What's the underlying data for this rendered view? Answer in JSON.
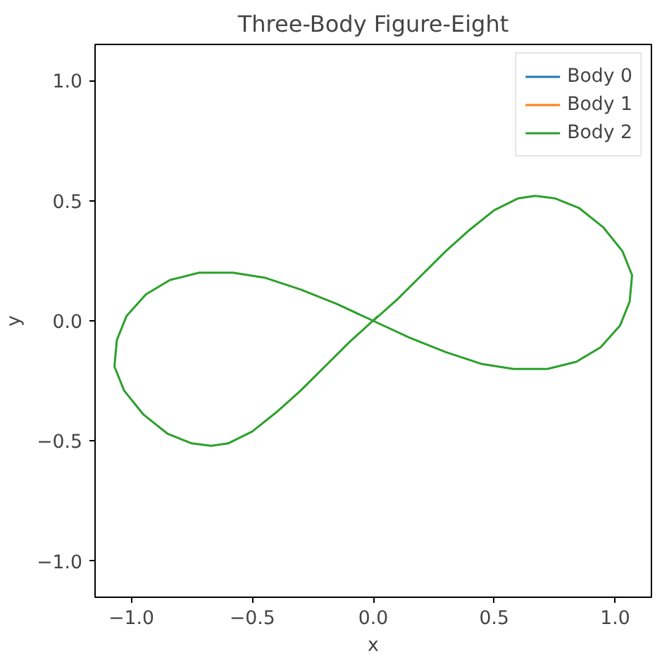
{
  "chart_data": {
    "type": "line",
    "title": "Three-Body Figure-Eight",
    "xlabel": "x",
    "ylabel": "y",
    "series": [
      {
        "name": "Body 0",
        "color": "#1f77b4"
      },
      {
        "name": "Body 1",
        "color": "#ff7f0e"
      },
      {
        "name": "Body 2",
        "color": "#2ca02c",
        "x": [
          0,
          0.1,
          0.2,
          0.3,
          0.4,
          0.5,
          0.6,
          0.67,
          0.75,
          0.85,
          0.95,
          1.03,
          1.07,
          1.06,
          1.02,
          0.94,
          0.84,
          0.72,
          0.58,
          0.45,
          0.3,
          0.15,
          0,
          -0.15,
          -0.3,
          -0.45,
          -0.58,
          -0.72,
          -0.84,
          -0.94,
          -1.02,
          -1.06,
          -1.07,
          -1.03,
          -0.95,
          -0.85,
          -0.75,
          -0.67,
          -0.6,
          -0.5,
          -0.4,
          -0.3,
          -0.2,
          -0.1,
          0.02
        ],
        "values": [
          0,
          0.09,
          0.19,
          0.29,
          0.38,
          0.46,
          0.51,
          0.52,
          0.51,
          0.47,
          0.39,
          0.29,
          0.19,
          0.08,
          -0.02,
          -0.11,
          -0.17,
          -0.2,
          -0.2,
          -0.18,
          -0.13,
          -0.07,
          0,
          0.07,
          0.13,
          0.18,
          0.2,
          0.2,
          0.17,
          0.11,
          0.02,
          -0.08,
          -0.19,
          -0.29,
          -0.39,
          -0.47,
          -0.51,
          -0.52,
          -0.51,
          -0.46,
          -0.38,
          -0.29,
          -0.19,
          -0.09,
          0.02
        ]
      }
    ],
    "xlim": [
      -1.15,
      1.15
    ],
    "ylim": [
      -1.15,
      1.15
    ],
    "xticks": [
      {
        "value": -1,
        "label": "−1.0"
      },
      {
        "value": -0.5,
        "label": "−0.5"
      },
      {
        "value": 0,
        "label": "0.0"
      },
      {
        "value": 0.5,
        "label": "0.5"
      },
      {
        "value": 1,
        "label": "1.0"
      }
    ],
    "yticks": [
      {
        "value": -1,
        "label": "−1.0"
      },
      {
        "value": -0.5,
        "label": "−0.5"
      },
      {
        "value": 0,
        "label": "0.0"
      },
      {
        "value": 0.5,
        "label": "0.5"
      },
      {
        "value": 1,
        "label": "1.0"
      }
    ],
    "legend": "top right",
    "grid": false
  }
}
